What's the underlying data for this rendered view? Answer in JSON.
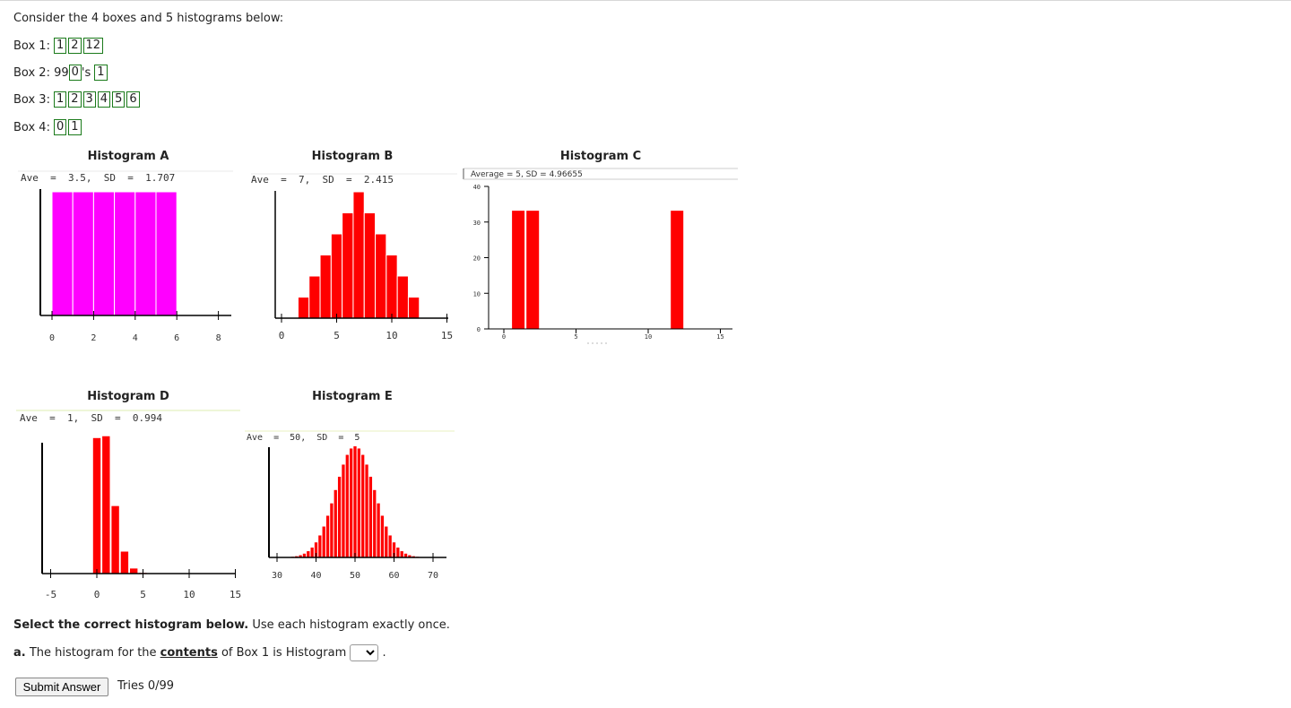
{
  "intro": "Consider the 4 boxes and 5 histograms below:",
  "boxes": [
    {
      "label": "Box 1:",
      "tickets": [
        "1",
        "2",
        "12"
      ],
      "suffix": ""
    },
    {
      "label": "Box 2: 99",
      "tickets": [
        "0"
      ],
      "suffix": "'s",
      "tickets2": [
        "1"
      ]
    },
    {
      "label": "Box 3:",
      "tickets": [
        "1",
        "2",
        "3",
        "4",
        "5",
        "6"
      ],
      "suffix": ""
    },
    {
      "label": "Box 4:",
      "tickets": [
        "0",
        "1"
      ],
      "suffix": ""
    }
  ],
  "histograms": {
    "a": {
      "title": "Histogram A",
      "stats": "Ave  =  3.5,  SD  =  1.707",
      "color": "#ff00ff",
      "ticks": [
        "0",
        "2",
        "4",
        "6",
        "8"
      ],
      "chart_data": {
        "type": "bar",
        "x": [
          0.5,
          1.5,
          2.5,
          3.5,
          4.5,
          5.5
        ],
        "heights": [
          1,
          1,
          1,
          1,
          1,
          1
        ],
        "xlim": [
          -0.5,
          8.5
        ]
      }
    },
    "b": {
      "title": "Histogram B",
      "stats": "Ave  =  7,  SD  =  2.415",
      "color": "#ff0000",
      "ticks": [
        "0",
        "5",
        "10",
        "15"
      ],
      "chart_data": {
        "type": "bar",
        "x": [
          2,
          3,
          4,
          5,
          6,
          7,
          8,
          9,
          10,
          11,
          12
        ],
        "heights": [
          1,
          2,
          3,
          4,
          5,
          6,
          5,
          4,
          3,
          2,
          1
        ],
        "xlim": [
          0,
          15
        ]
      }
    },
    "c": {
      "title": "Histogram C",
      "stats": "Average = 5, SD = 4.96655",
      "color": "#ff0000",
      "yticks": [
        "40",
        "30",
        "20",
        "10",
        "0"
      ],
      "ticks": [
        "0",
        "5",
        "10",
        "15"
      ],
      "chart_data": {
        "type": "bar",
        "x": [
          1,
          2,
          12
        ],
        "values": [
          33.3,
          33.3,
          33.3
        ],
        "ylim": [
          0,
          40
        ],
        "xlim": [
          0,
          15
        ]
      }
    },
    "d": {
      "title": "Histogram D",
      "stats": "Ave  =  1,  SD  =  0.994",
      "color": "#ff0000",
      "ticks": [
        "-5",
        "0",
        "5",
        "10",
        "15"
      ],
      "chart_data": {
        "type": "bar",
        "x": [
          0,
          1,
          2,
          3,
          4,
          5
        ],
        "heights": [
          37,
          37.5,
          18.5,
          6.1,
          1.5,
          0.3
        ],
        "xlim": [
          -5,
          15
        ]
      }
    },
    "e": {
      "title": "Histogram E",
      "stats": "Ave  =  50,  SD  =  5",
      "color": "#ff0000",
      "ticks": [
        "30",
        "40",
        "50",
        "60",
        "70"
      ],
      "chart_data": {
        "type": "bar",
        "mean": 50,
        "sd": 5,
        "x_start": 34,
        "x_end": 66,
        "xlim": [
          30,
          70
        ]
      }
    }
  },
  "question": {
    "prompt_bold": "Select the correct histogram below.",
    "prompt_rest": " Use each histogram exactly once.",
    "a_label": "a.",
    "a_text1": " The histogram for the ",
    "a_contents": "contents",
    "a_text2": " of Box 1 is Histogram ",
    "a_end": "."
  },
  "submit": {
    "label": "Submit Answer",
    "tries": "Tries 0/99"
  }
}
